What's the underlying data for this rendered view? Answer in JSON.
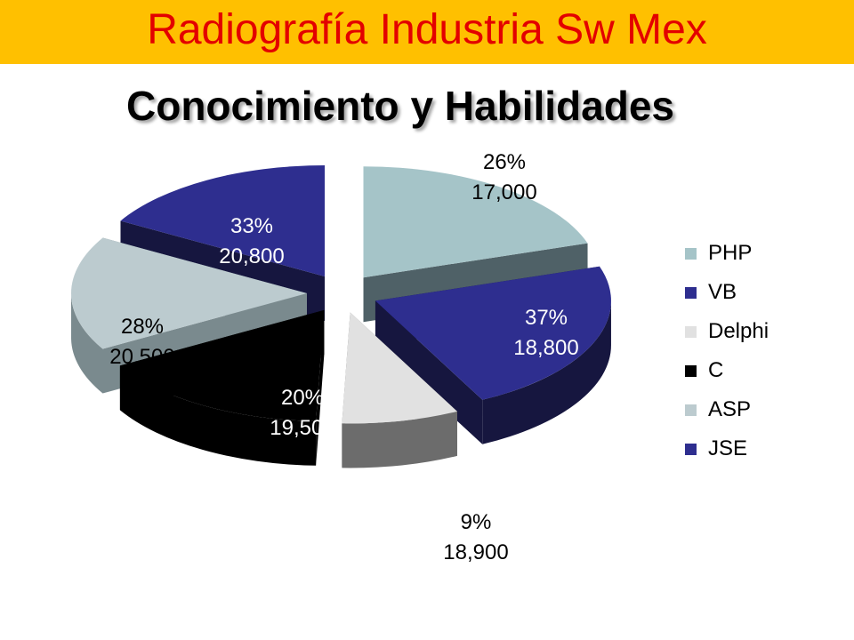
{
  "header": {
    "title": "Radiografía Industria Sw Mex",
    "title_color": "#e30000",
    "banner_color": "#ffc000"
  },
  "chart_data": {
    "type": "pie",
    "variant": "exploded-3d",
    "title": "Conocimiento y Habilidades",
    "legend_position": "right",
    "slices": [
      {
        "name": "PHP",
        "percent_label": "26%",
        "value_label": "17,000",
        "value": 17000,
        "color": "#a5c4c8",
        "side_color": "#4f6167"
      },
      {
        "name": "VB",
        "percent_label": "37%",
        "value_label": "18,800",
        "value": 18800,
        "color": "#2e2e8f",
        "side_color": "#16163f"
      },
      {
        "name": "Delphi",
        "percent_label": "9%",
        "value_label": "18,900",
        "value": 18900,
        "color": "#e1e1e1",
        "side_color": "#6c6c6c"
      },
      {
        "name": "C",
        "percent_label": "20%",
        "value_label": "19,500",
        "value": 19500,
        "color": "#000000",
        "side_color": "#000000"
      },
      {
        "name": "ASP",
        "percent_label": "28%",
        "value_label": "20,500",
        "value": 20500,
        "color": "#bccbcf",
        "side_color": "#7a8a8e"
      },
      {
        "name": "JSE",
        "percent_label": "33%",
        "value_label": "20,800",
        "value": 20800,
        "color": "#2e2e8f",
        "side_color": "#16163f"
      }
    ]
  }
}
